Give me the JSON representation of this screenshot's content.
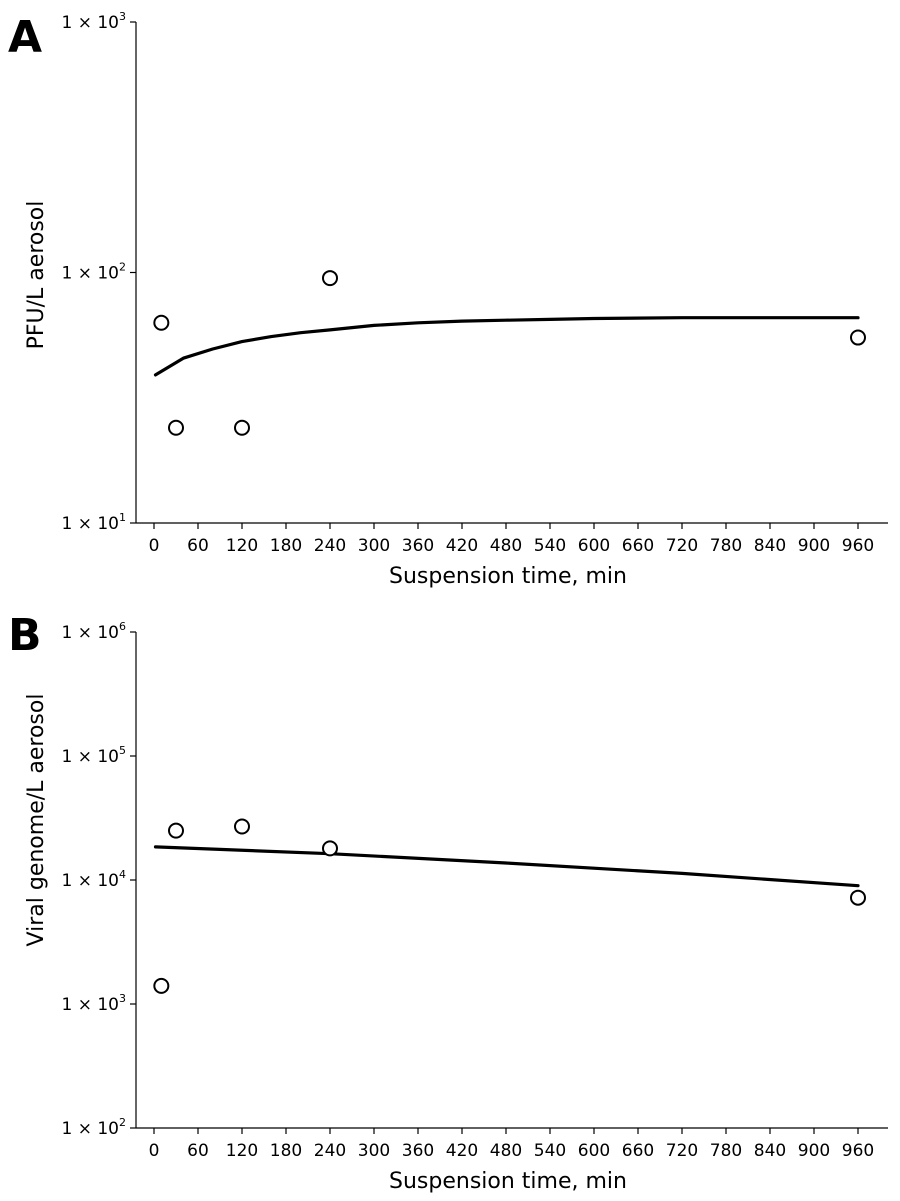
{
  "chart_data": [
    {
      "panel": "A",
      "type": "scatter",
      "xlabel": "Suspension time, min",
      "ylabel": "PFU/L aerosol",
      "xlim": [
        0,
        960
      ],
      "x_ticks": [
        0,
        60,
        120,
        180,
        240,
        300,
        360,
        420,
        480,
        540,
        600,
        660,
        720,
        780,
        840,
        900,
        960
      ],
      "y_scale": "log",
      "ylim": [
        10,
        1000
      ],
      "y_ticks": [
        {
          "value": 10,
          "base": "1 × 10",
          "exp": "1"
        },
        {
          "value": 100,
          "base": "1 × 10",
          "exp": "2"
        },
        {
          "value": 1000,
          "base": "1 × 10",
          "exp": "3"
        }
      ],
      "grid": false,
      "points": {
        "x": [
          10,
          30,
          120,
          240,
          960
        ],
        "y": [
          63,
          24,
          24,
          95,
          55
        ]
      },
      "fit_line": {
        "x": [
          2,
          40,
          80,
          120,
          160,
          200,
          240,
          300,
          360,
          420,
          480,
          540,
          600,
          720,
          840,
          960
        ],
        "y": [
          39,
          45.5,
          49.5,
          53,
          55.5,
          57.5,
          59,
          61.5,
          63,
          64,
          64.5,
          65,
          65.5,
          66,
          66,
          66
        ]
      }
    },
    {
      "panel": "B",
      "type": "scatter",
      "xlabel": "Suspension time, min",
      "ylabel": "Viral genome/L aerosol",
      "xlim": [
        0,
        960
      ],
      "x_ticks": [
        0,
        60,
        120,
        180,
        240,
        300,
        360,
        420,
        480,
        540,
        600,
        660,
        720,
        780,
        840,
        900,
        960
      ],
      "y_scale": "log",
      "ylim": [
        100,
        1000000
      ],
      "y_ticks": [
        {
          "value": 100,
          "base": "1 × 10",
          "exp": "2"
        },
        {
          "value": 1000,
          "base": "1 × 10",
          "exp": "3"
        },
        {
          "value": 10000,
          "base": "1 × 10",
          "exp": "4"
        },
        {
          "value": 100000,
          "base": "1 × 10",
          "exp": "5"
        },
        {
          "value": 1000000,
          "base": "1 × 10",
          "exp": "6"
        }
      ],
      "grid": false,
      "points": {
        "x": [
          10,
          30,
          120,
          240,
          960
        ],
        "y": [
          1400,
          25000,
          27000,
          18000,
          7200
        ]
      },
      "fit_line": {
        "x": [
          2,
          240,
          480,
          720,
          960
        ],
        "y": [
          18500,
          16300,
          13700,
          11300,
          9000
        ]
      }
    }
  ]
}
